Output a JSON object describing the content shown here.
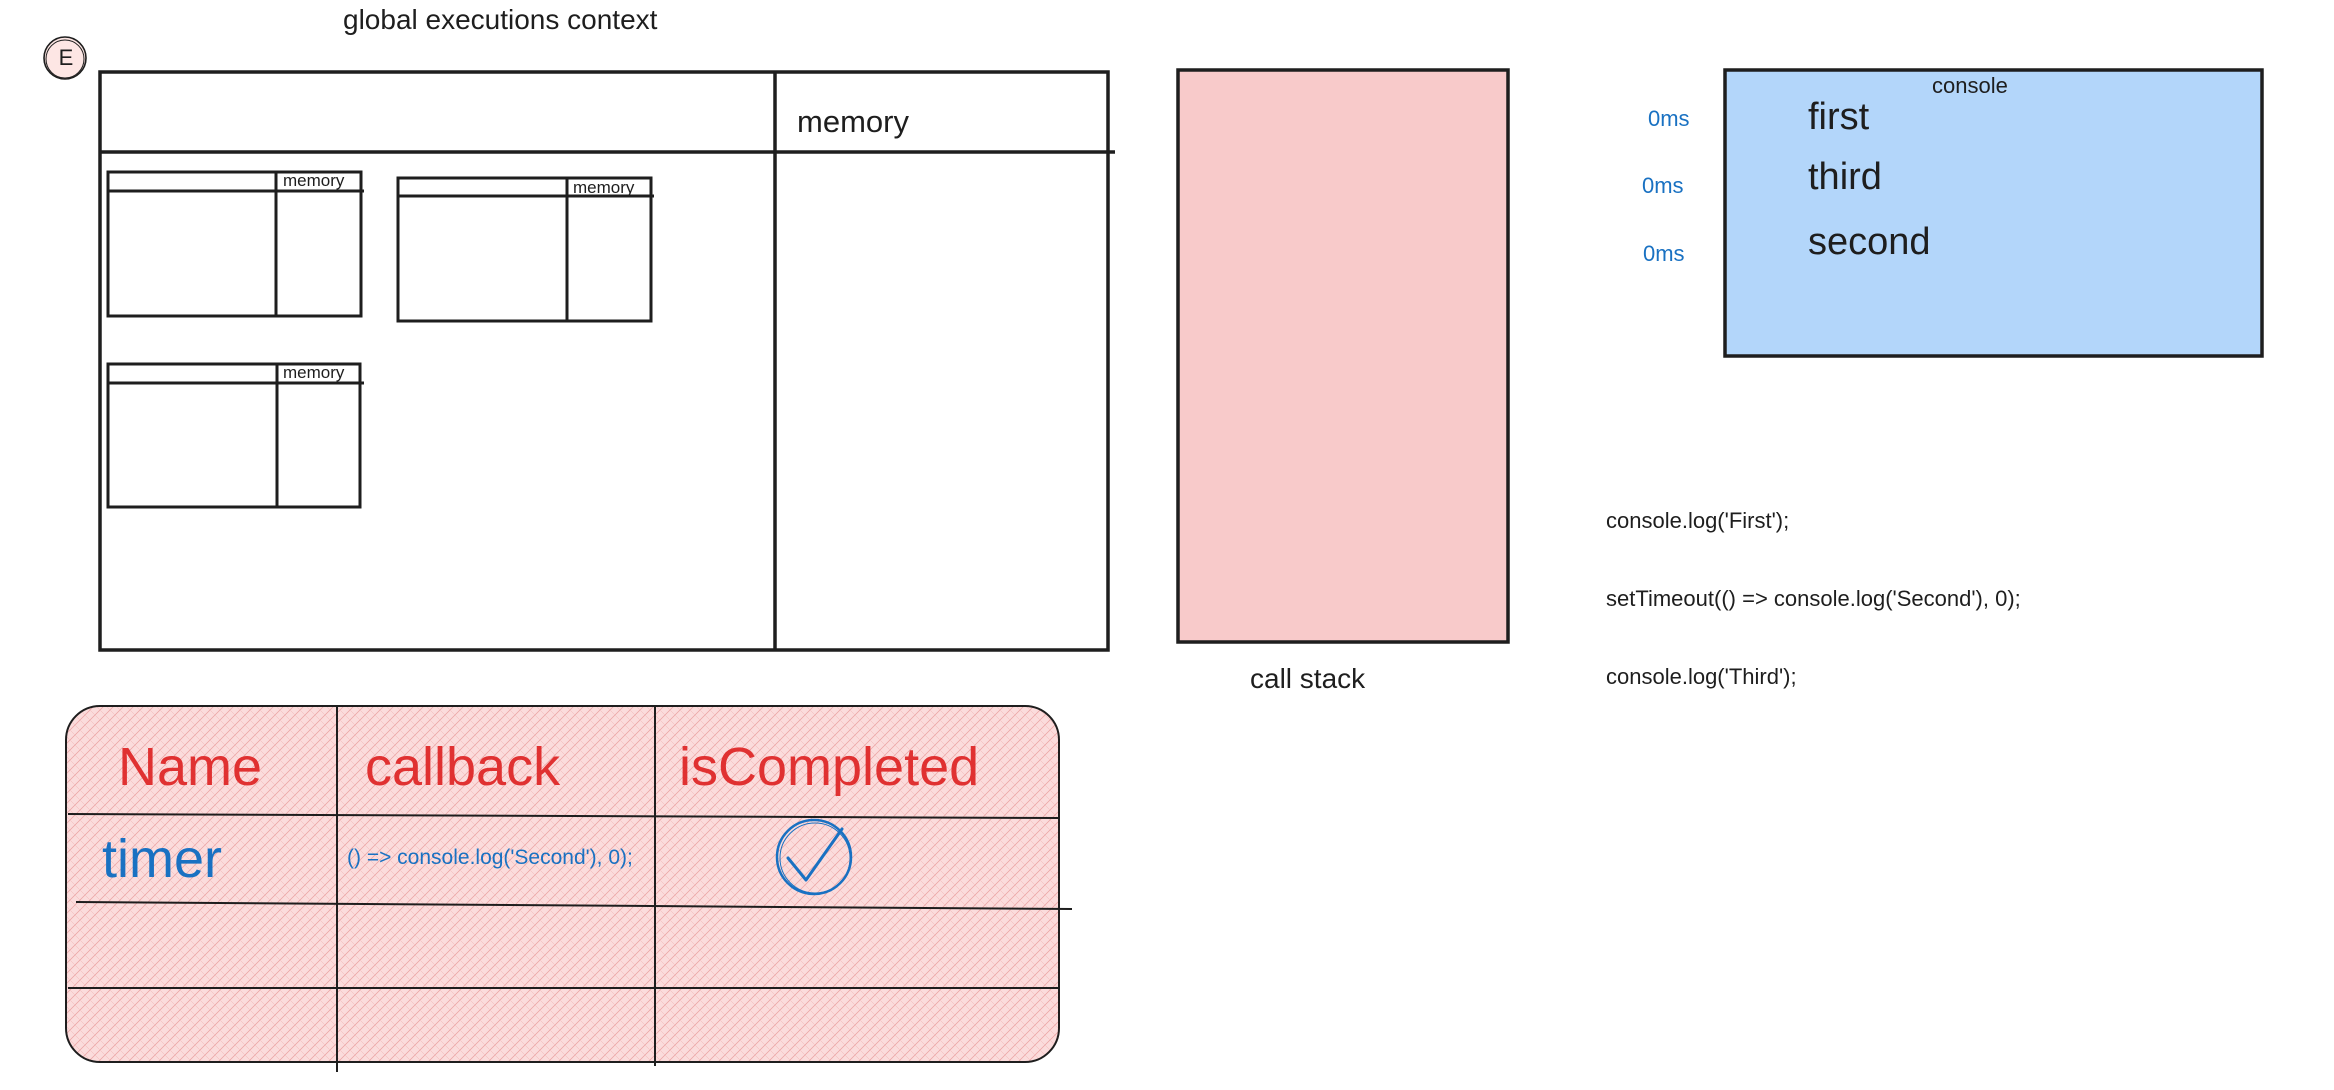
{
  "badge": {
    "letter": "E"
  },
  "gec": {
    "title": "global executions context",
    "memory_label": "memory",
    "mini_contexts": [
      {
        "memory_label": "memory"
      },
      {
        "memory_label": "memory"
      },
      {
        "memory_label": "memory"
      }
    ]
  },
  "call_stack": {
    "label": "call stack",
    "fill_color": "#f8caca"
  },
  "console": {
    "title": "console",
    "fill_color": "#b3d6fa",
    "lines": [
      "first",
      "third",
      "second"
    ],
    "timings": [
      "0ms",
      "0ms",
      "0ms"
    ]
  },
  "code": {
    "lines": [
      "console.log('First');",
      "setTimeout(() => console.log('Second'), 0);",
      "console.log('Third');"
    ]
  },
  "timer_table": {
    "fill_color": "#fbdcdc",
    "headers": [
      "Name",
      "callback",
      "isCompleted"
    ],
    "rows": [
      {
        "name": "timer",
        "callback": "() => console.log('Second'), 0);",
        "completed_icon": "check-circle-icon"
      }
    ]
  }
}
